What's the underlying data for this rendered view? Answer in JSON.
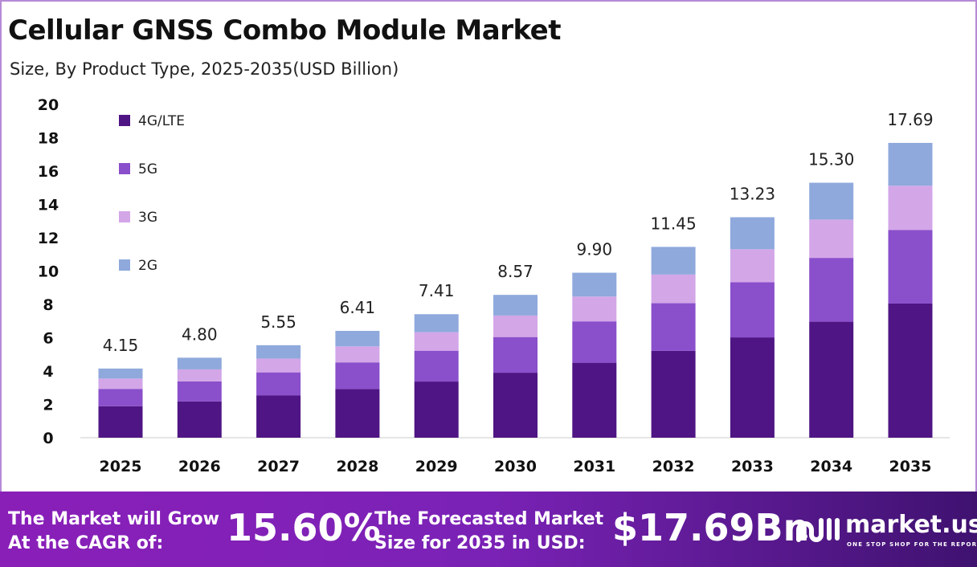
{
  "title": "Cellular GNSS Combo Module Market",
  "subtitle": "Size, By Product Type, 2025-2035(USD Billion)",
  "chart_data": {
    "type": "bar",
    "stacked": true,
    "categories": [
      "2025",
      "2026",
      "2027",
      "2028",
      "2029",
      "2030",
      "2031",
      "2032",
      "2033",
      "2034",
      "2035"
    ],
    "series": [
      {
        "name": "4G/LTE",
        "color": "#4f1584",
        "values": [
          1.89,
          2.18,
          2.53,
          2.92,
          3.37,
          3.9,
          4.5,
          5.21,
          6.02,
          6.96,
          8.05
        ]
      },
      {
        "name": "5G",
        "color": "#8a4fcb",
        "values": [
          1.04,
          1.2,
          1.39,
          1.6,
          1.85,
          2.14,
          2.48,
          2.86,
          3.31,
          3.83,
          4.42
        ]
      },
      {
        "name": "3G",
        "color": "#d3a6e8",
        "values": [
          0.62,
          0.72,
          0.83,
          0.96,
          1.11,
          1.29,
          1.49,
          1.72,
          1.98,
          2.3,
          2.65
        ]
      },
      {
        "name": "2G",
        "color": "#8fa9dc",
        "values": [
          0.6,
          0.7,
          0.8,
          0.93,
          1.08,
          1.24,
          1.43,
          1.66,
          1.92,
          2.21,
          2.57
        ]
      }
    ],
    "totals": [
      "4.15",
      "4.80",
      "5.55",
      "6.41",
      "7.41",
      "8.57",
      "9.90",
      "11.45",
      "13.23",
      "15.30",
      "17.69"
    ],
    "yticks": [
      "0",
      "2",
      "4",
      "6",
      "8",
      "10",
      "12",
      "14",
      "16",
      "18",
      "20"
    ],
    "ylim": [
      0,
      20
    ],
    "legend": "top-left",
    "grid": false
  },
  "footer": {
    "cagr_label_1": "The Market will Grow",
    "cagr_label_2": "At the CAGR of:",
    "cagr_value": "15.60%",
    "size_label_1": "The Forecasted Market",
    "size_label_2": "Size for 2035 in USD:",
    "size_value": "$17.69Bn",
    "logo_text": "market.us",
    "logo_tagline": "ONE STOP SHOP FOR THE REPORTS"
  }
}
